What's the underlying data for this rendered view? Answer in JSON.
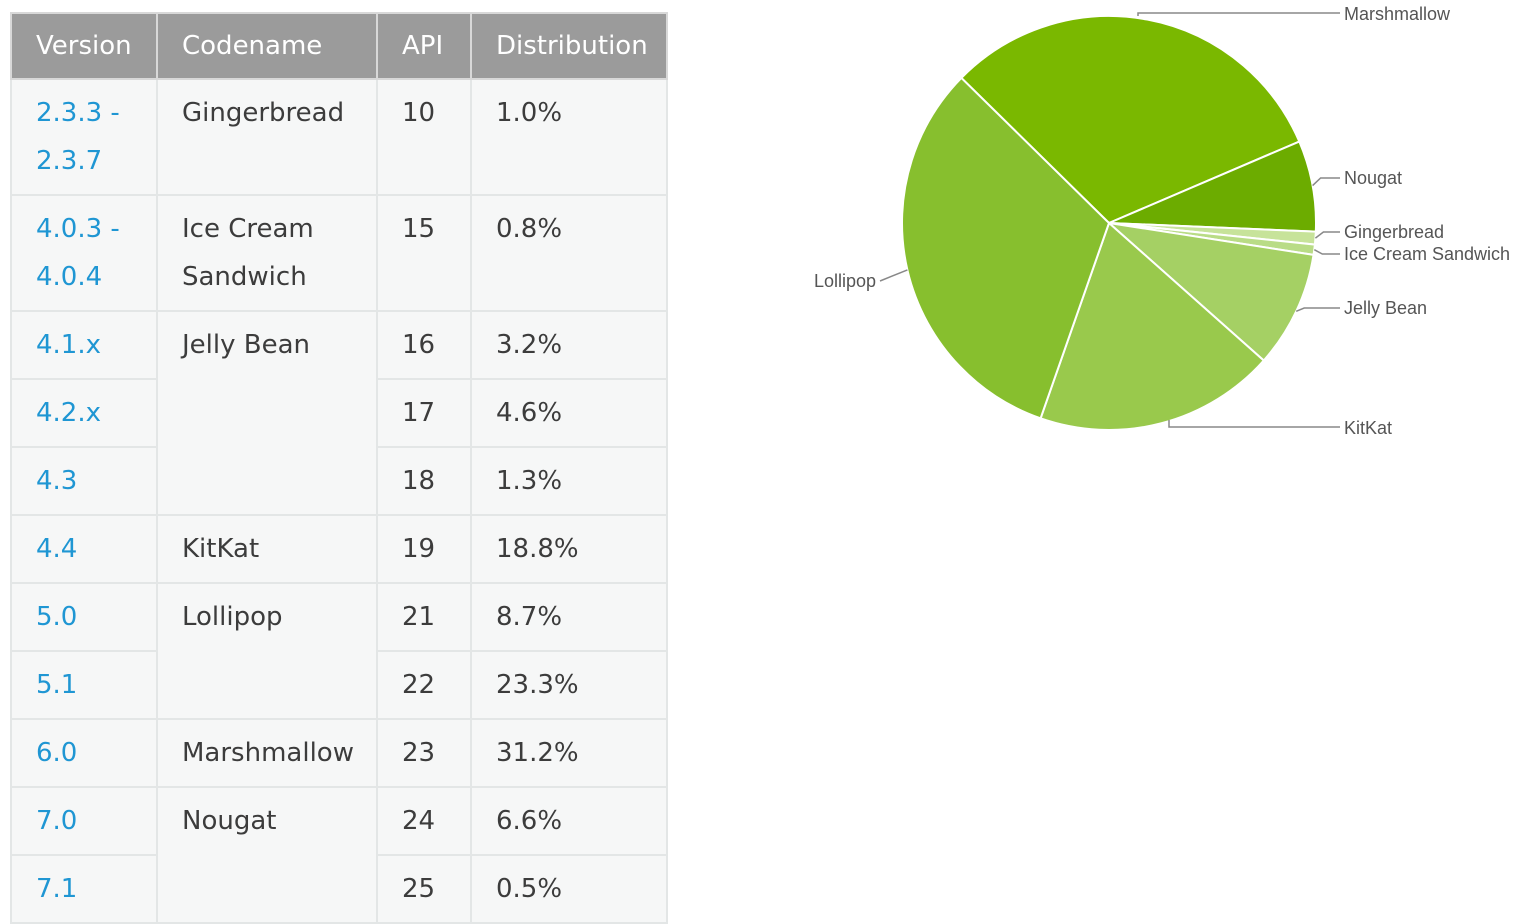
{
  "table": {
    "headers": [
      "Version",
      "Codename",
      "API",
      "Distribution"
    ],
    "rows": [
      {
        "version": [
          "2.3.3 -",
          "2.3.7"
        ],
        "codename": "Gingerbread",
        "codename_rows": 1,
        "api": "10",
        "distribution": "1.0%"
      },
      {
        "version": [
          "4.0.3 -",
          "4.0.4"
        ],
        "codename": "Ice Cream Sandwich",
        "codename_rows": 1,
        "api": "15",
        "distribution": "0.8%"
      },
      {
        "version": [
          "4.1.x"
        ],
        "codename": "Jelly Bean",
        "codename_rows": 3,
        "api": "16",
        "distribution": "3.2%"
      },
      {
        "version": [
          "4.2.x"
        ],
        "api": "17",
        "distribution": "4.6%"
      },
      {
        "version": [
          "4.3"
        ],
        "api": "18",
        "distribution": "1.3%"
      },
      {
        "version": [
          "4.4"
        ],
        "codename": "KitKat",
        "codename_rows": 1,
        "api": "19",
        "distribution": "18.8%"
      },
      {
        "version": [
          "5.0"
        ],
        "codename": "Lollipop",
        "codename_rows": 2,
        "api": "21",
        "distribution": "8.7%"
      },
      {
        "version": [
          "5.1"
        ],
        "api": "22",
        "distribution": "23.3%"
      },
      {
        "version": [
          "6.0"
        ],
        "codename": "Marshmallow",
        "codename_rows": 1,
        "api": "23",
        "distribution": "31.2%"
      },
      {
        "version": [
          "7.0"
        ],
        "codename": "Nougat",
        "codename_rows": 2,
        "api": "24",
        "distribution": "6.6%"
      },
      {
        "version": [
          "7.1"
        ],
        "api": "25",
        "distribution": "0.5%"
      }
    ]
  },
  "chart_data": {
    "type": "pie",
    "title": "",
    "slices": [
      {
        "label": "Marshmallow",
        "value": 31.2,
        "color": "#7ab800"
      },
      {
        "label": "Nougat",
        "value": 7.1,
        "color": "#6cac00"
      },
      {
        "label": "Gingerbread",
        "value": 1.0,
        "color": "#c7e39a"
      },
      {
        "label": "Ice Cream Sandwich",
        "value": 0.8,
        "color": "#b9dc86"
      },
      {
        "label": "Jelly Bean",
        "value": 9.1,
        "color": "#a5d064"
      },
      {
        "label": "KitKat",
        "value": 18.8,
        "color": "#99c94c"
      },
      {
        "label": "Lollipop",
        "value": 32.0,
        "color": "#87bf2e"
      }
    ]
  },
  "colors": {
    "header_bg": "#9b9b9b",
    "cell_bg": "#f6f7f7",
    "border": "#e3e6e6",
    "version_link": "#1f96d3",
    "leader_line": "#888888"
  }
}
